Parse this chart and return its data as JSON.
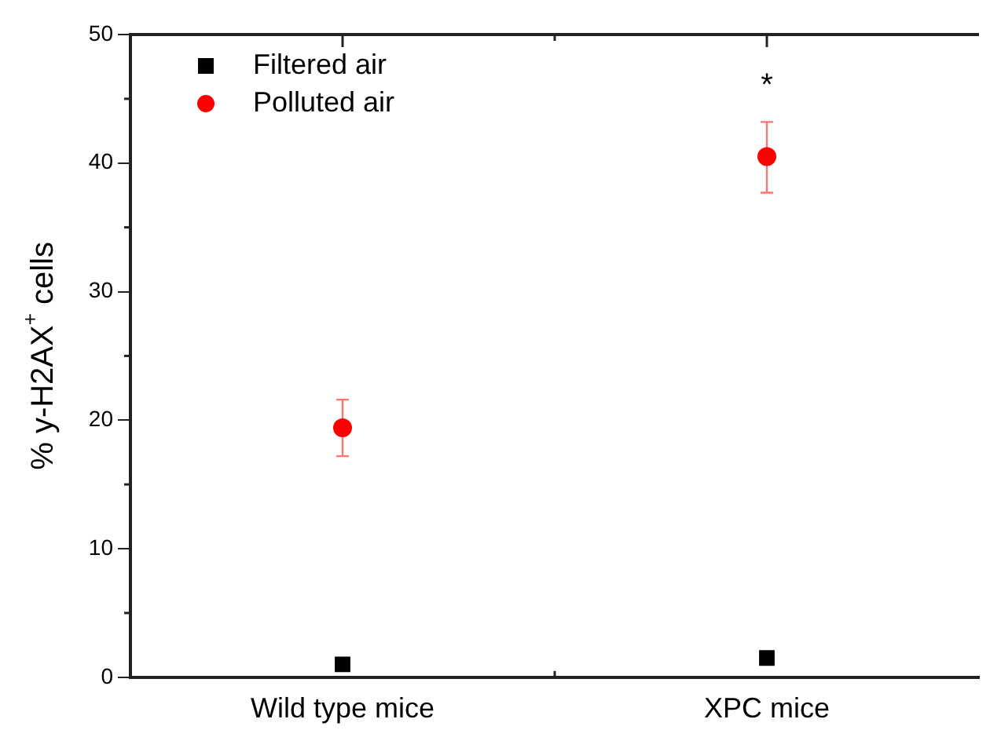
{
  "chart_data": {
    "type": "scatter",
    "ylabel": "% y-H2AX$^{+}$ cells",
    "categories": [
      "Wild type mice",
      "XPC mice"
    ],
    "ylim": [
      0,
      50
    ],
    "yticks": [
      0,
      10,
      20,
      30,
      40,
      50
    ],
    "legend": "top left",
    "grid": false,
    "series": [
      {
        "name": "Filtered air",
        "color": "#000000",
        "marker": "square",
        "values": [
          1.0,
          1.5
        ]
      },
      {
        "name": "Polluted air",
        "color": "#ff0000",
        "marker": "circle",
        "values": [
          19.4,
          40.5
        ],
        "errors": [
          [
            17.2,
            21.6
          ],
          [
            37.7,
            43.2
          ]
        ]
      }
    ],
    "annotations": [
      "*"
    ]
  }
}
